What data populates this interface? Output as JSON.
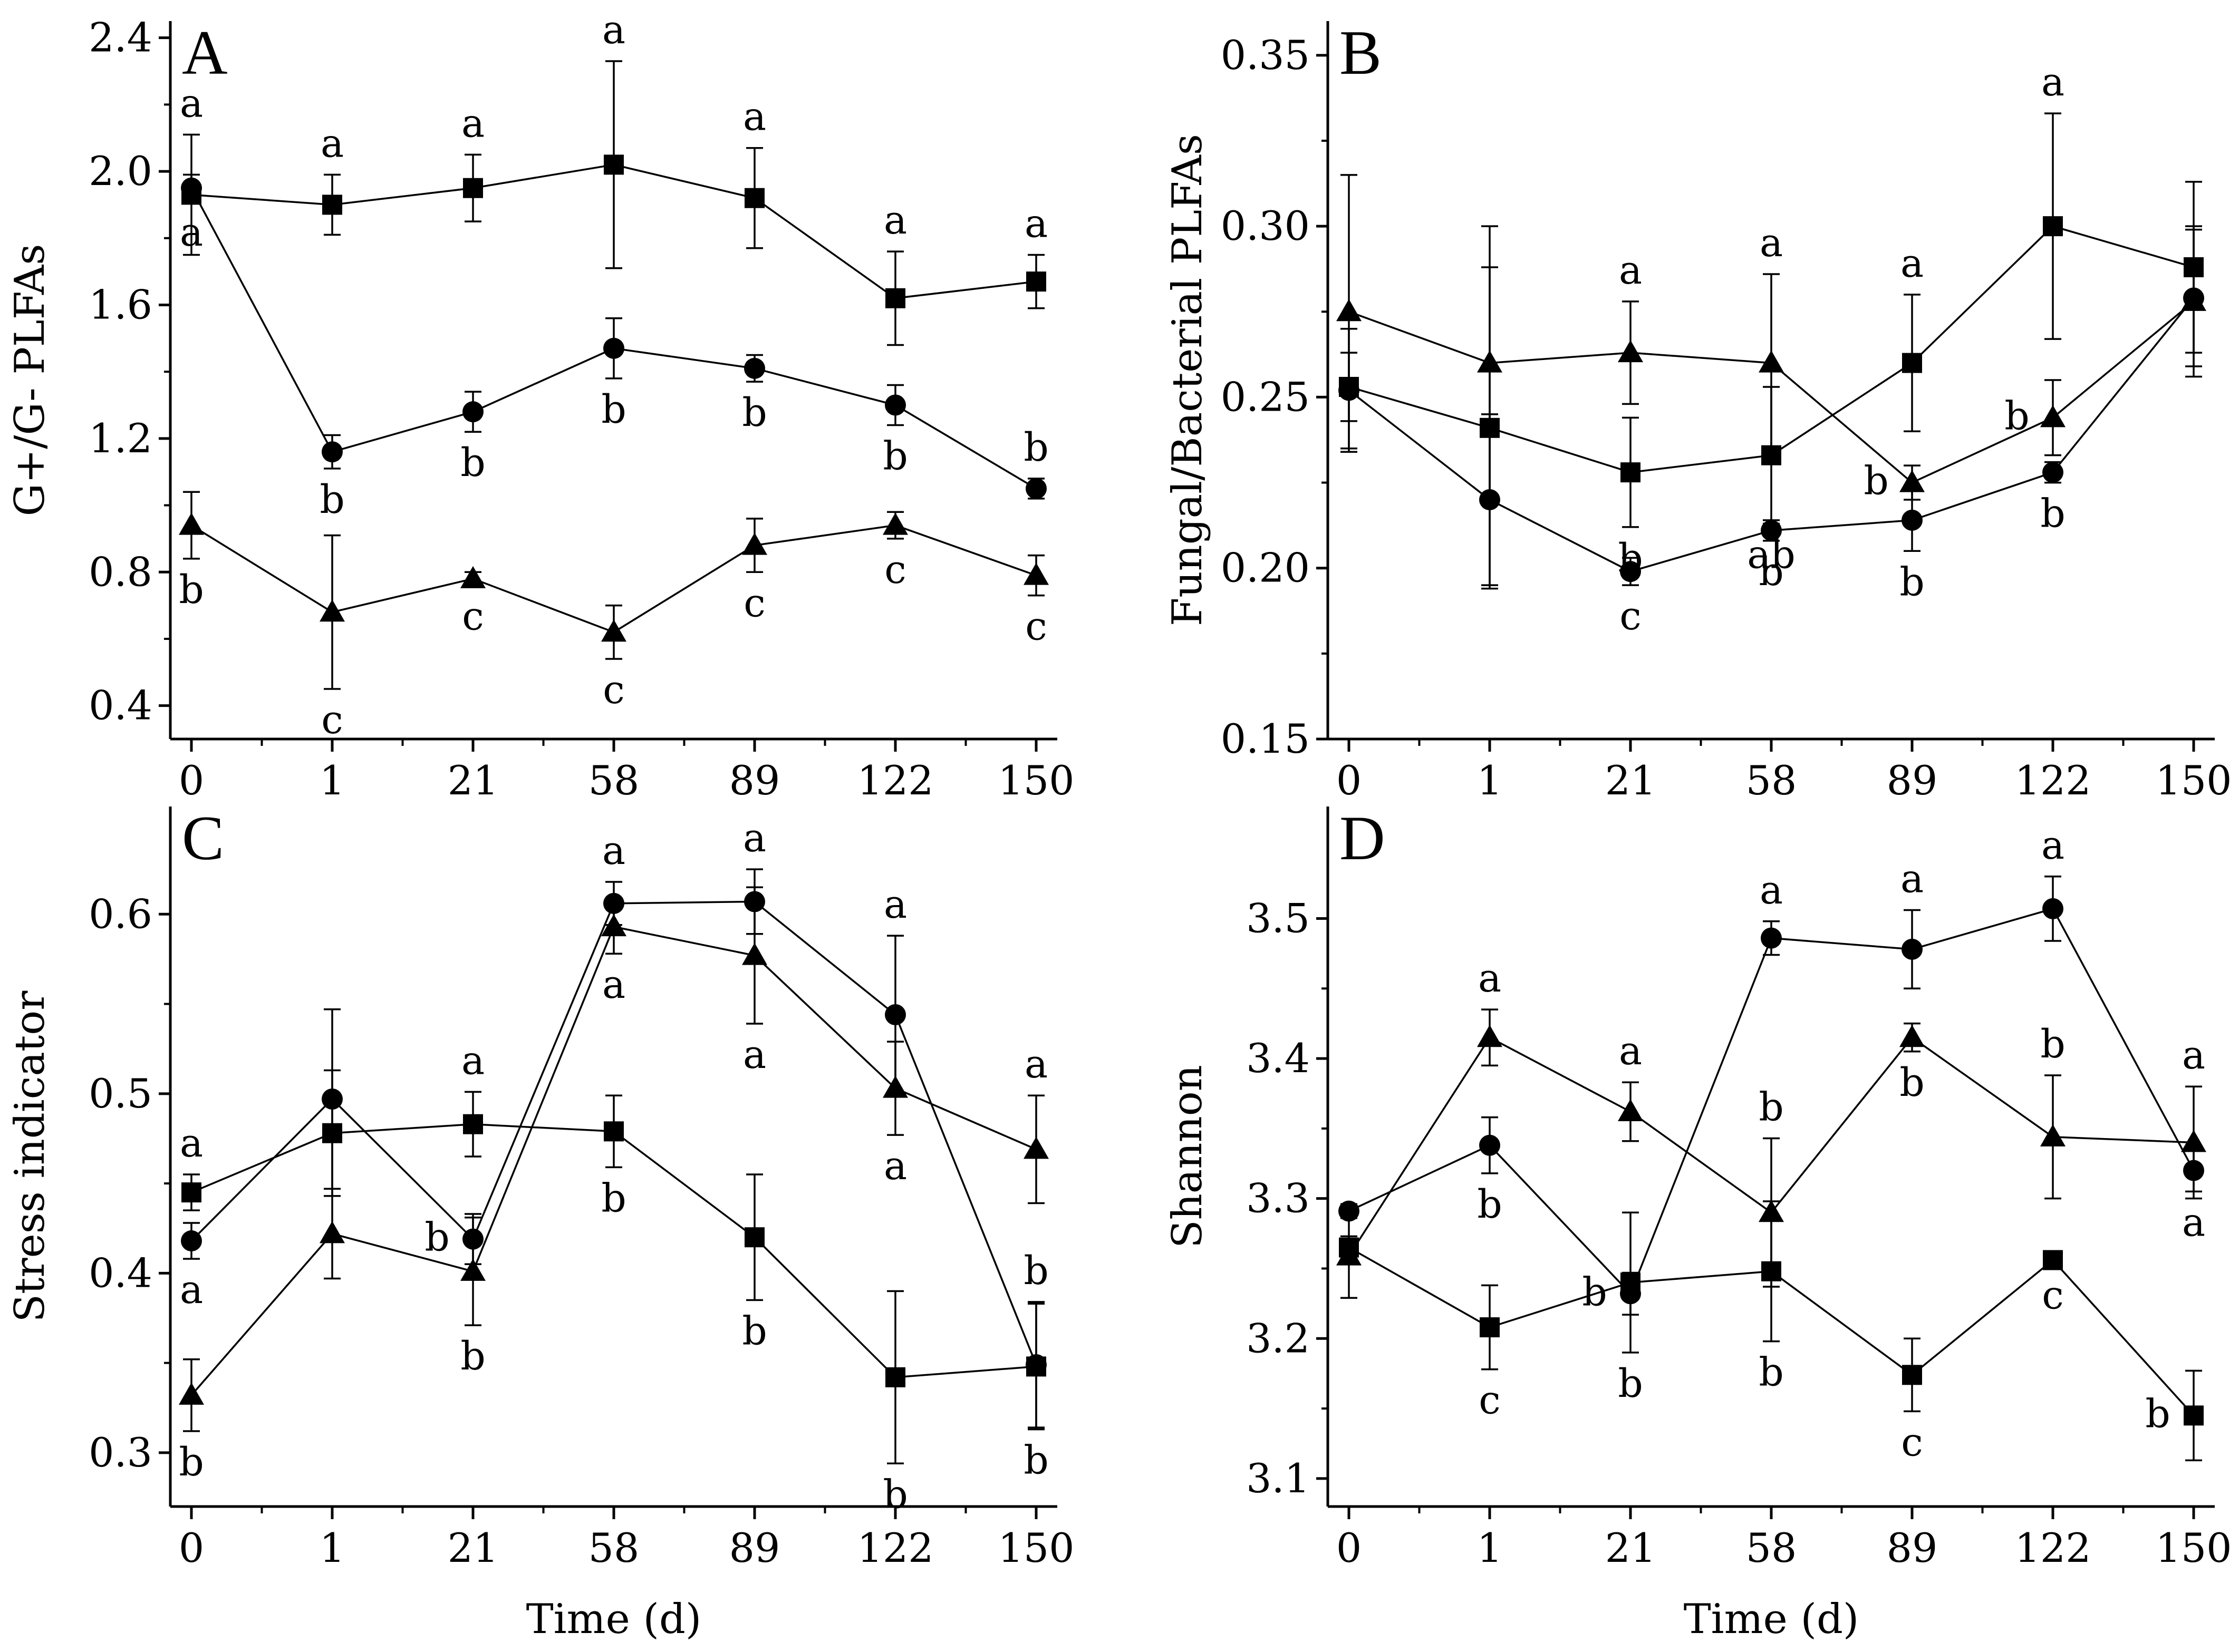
{
  "chart_data": [
    {
      "panel": "A",
      "type": "line",
      "title": "",
      "xlabel": "",
      "ylabel": "G+/G- PLFAs",
      "categories": [
        "0",
        "1",
        "21",
        "58",
        "89",
        "122",
        "150"
      ],
      "ylim": [
        0.3,
        2.45
      ],
      "yticks": [
        0.4,
        0.8,
        1.2,
        1.6,
        2.0,
        2.4
      ],
      "ytick_labels": [
        "0.4",
        "0.8",
        "1.2",
        "1.6",
        "2.0",
        "2.4"
      ],
      "series": [
        {
          "name": "square",
          "marker": "square",
          "values": [
            1.93,
            1.9,
            1.95,
            2.02,
            1.92,
            1.62,
            1.67
          ],
          "errors": [
            0.18,
            0.09,
            0.1,
            0.31,
            0.15,
            0.14,
            0.08
          ],
          "labels": [
            "a",
            "a",
            "a",
            "a",
            "a",
            "a",
            "a"
          ],
          "label_pos": [
            "above",
            "above",
            "above",
            "above",
            "above",
            "above",
            "above"
          ]
        },
        {
          "name": "circle",
          "marker": "circle",
          "values": [
            1.95,
            1.16,
            1.28,
            1.47,
            1.41,
            1.3,
            1.05
          ],
          "errors": [
            0.04,
            0.05,
            0.06,
            0.09,
            0.04,
            0.06,
            0.03
          ],
          "labels": [
            "a",
            "b",
            "b",
            "b",
            "b",
            "b",
            "b"
          ],
          "label_pos": [
            "below",
            "below",
            "below",
            "below",
            "below",
            "below",
            "above"
          ]
        },
        {
          "name": "triangle",
          "marker": "triangle",
          "values": [
            0.94,
            0.68,
            0.78,
            0.62,
            0.88,
            0.94,
            0.79
          ],
          "errors": [
            0.1,
            0.23,
            0.02,
            0.08,
            0.08,
            0.04,
            0.06
          ],
          "labels": [
            "b",
            "c",
            "c",
            "c",
            "c",
            "c",
            "c"
          ],
          "label_pos": [
            "below",
            "below",
            "below",
            "below",
            "below",
            "below",
            "below"
          ]
        }
      ]
    },
    {
      "panel": "B",
      "type": "line",
      "title": "",
      "xlabel": "",
      "ylabel": "Fungal/Bacterial PLFAs",
      "categories": [
        "0",
        "1",
        "21",
        "58",
        "89",
        "122",
        "150"
      ],
      "ylim": [
        0.15,
        0.36
      ],
      "yticks": [
        0.15,
        0.2,
        0.25,
        0.3,
        0.35
      ],
      "ytick_labels": [
        "0.15",
        "0.20",
        "0.25",
        "0.30",
        "0.35"
      ],
      "series": [
        {
          "name": "square",
          "marker": "square",
          "values": [
            0.253,
            0.241,
            0.228,
            0.233,
            0.26,
            0.3,
            0.288
          ],
          "errors": [
            0.01,
            0.047,
            0.016,
            0.02,
            0.02,
            0.033,
            0.025
          ],
          "labels": [
            "",
            "",
            "b",
            "ab",
            "a",
            "a",
            ""
          ],
          "label_pos": [
            "",
            "",
            "below",
            "below",
            "above",
            "above",
            ""
          ]
        },
        {
          "name": "circle",
          "marker": "circle",
          "values": [
            0.252,
            0.22,
            0.199,
            0.211,
            0.214,
            0.228,
            0.279
          ],
          "errors": [
            0.018,
            0.025,
            0.004,
            0.003,
            0.009,
            0.003,
            0.02
          ],
          "labels": [
            "",
            "",
            "c",
            "b",
            "b",
            "b",
            ""
          ],
          "label_pos": [
            "",
            "",
            "below",
            "below",
            "below",
            "below",
            ""
          ]
        },
        {
          "name": "triangle",
          "marker": "triangle",
          "values": [
            0.275,
            0.26,
            0.263,
            0.26,
            0.225,
            0.244,
            0.278
          ],
          "errors": [
            0.04,
            0.04,
            0.015,
            0.026,
            0.005,
            0.011,
            0.022
          ],
          "labels": [
            "",
            "",
            "a",
            "a",
            "b",
            "b",
            ""
          ],
          "label_pos": [
            "",
            "",
            "above",
            "above",
            "left",
            "left",
            ""
          ]
        }
      ]
    },
    {
      "panel": "C",
      "type": "line",
      "title": "",
      "xlabel": "Time (d)",
      "ylabel": "Stress indicator",
      "categories": [
        "0",
        "1",
        "21",
        "58",
        "89",
        "122",
        "150"
      ],
      "ylim": [
        0.27,
        0.66
      ],
      "yticks": [
        0.3,
        0.4,
        0.5,
        0.6
      ],
      "ytick_labels": [
        "0.3",
        "0.4",
        "0.5",
        "0.6"
      ],
      "series": [
        {
          "name": "square",
          "marker": "square",
          "values": [
            0.445,
            0.478,
            0.483,
            0.479,
            0.42,
            0.342,
            0.348
          ],
          "errors": [
            0.01,
            0.035,
            0.018,
            0.02,
            0.035,
            0.048,
            0.035
          ],
          "labels": [
            "a",
            "",
            "a",
            "b",
            "b",
            "b",
            "b"
          ],
          "label_pos": [
            "above",
            "",
            "above",
            "below",
            "below",
            "below",
            "below"
          ]
        },
        {
          "name": "circle",
          "marker": "circle",
          "values": [
            0.418,
            0.497,
            0.419,
            0.606,
            0.607,
            0.544,
            0.349
          ],
          "errors": [
            0.01,
            0.05,
            0.014,
            0.012,
            0.018,
            0.044,
            0.035
          ],
          "labels": [
            "a",
            "",
            "b",
            "a",
            "a",
            "a",
            "b"
          ],
          "label_pos": [
            "below",
            "",
            "left",
            "above",
            "above",
            "above",
            "above"
          ]
        },
        {
          "name": "triangle",
          "marker": "triangle",
          "values": [
            0.332,
            0.422,
            0.401,
            0.593,
            0.577,
            0.503,
            0.469
          ],
          "errors": [
            0.02,
            0.025,
            0.03,
            0.015,
            0.038,
            0.026,
            0.03
          ],
          "labels": [
            "b",
            "",
            "b",
            "a",
            "a",
            "a",
            "a"
          ],
          "label_pos": [
            "below",
            "",
            "below",
            "below",
            "below",
            "below",
            "above"
          ]
        }
      ]
    },
    {
      "panel": "D",
      "type": "line",
      "title": "",
      "xlabel": "Time (d)",
      "ylabel": "Shannon",
      "categories": [
        "0",
        "1",
        "21",
        "58",
        "89",
        "122",
        "150"
      ],
      "ylim": [
        3.08,
        3.58
      ],
      "yticks": [
        3.1,
        3.2,
        3.3,
        3.4,
        3.5
      ],
      "ytick_labels": [
        "3.1",
        "3.2",
        "3.3",
        "3.4",
        "3.5"
      ],
      "series": [
        {
          "name": "square",
          "marker": "square",
          "values": [
            3.265,
            3.208,
            3.24,
            3.248,
            3.174,
            3.256,
            3.145
          ],
          "errors": [
            0.008,
            0.03,
            0.05,
            0.05,
            0.026,
            0.003,
            0.032
          ],
          "labels": [
            "",
            "c",
            "b",
            "b",
            "c",
            "c",
            "b"
          ],
          "label_pos": [
            "",
            "below",
            "below",
            "below",
            "below",
            "below",
            "left"
          ]
        },
        {
          "name": "circle",
          "marker": "circle",
          "values": [
            3.291,
            3.338,
            3.232,
            3.486,
            3.478,
            3.507,
            3.32
          ],
          "errors": [
            0.005,
            0.02,
            0.015,
            0.012,
            0.028,
            0.023,
            0.015
          ],
          "labels": [
            "",
            "b",
            "b",
            "a",
            "a",
            "a",
            "a"
          ],
          "label_pos": [
            "",
            "below",
            "left",
            "above",
            "above",
            "above",
            "below"
          ]
        },
        {
          "name": "triangle",
          "marker": "triangle",
          "values": [
            3.259,
            3.415,
            3.362,
            3.29,
            3.415,
            3.344,
            3.34
          ],
          "errors": [
            0.03,
            0.02,
            0.021,
            0.053,
            0.01,
            0.044,
            0.04
          ],
          "labels": [
            "",
            "a",
            "a",
            "b",
            "b",
            "b",
            "a"
          ],
          "label_pos": [
            "",
            "above",
            "above",
            "above",
            "below",
            "above",
            "above"
          ]
        }
      ]
    }
  ]
}
